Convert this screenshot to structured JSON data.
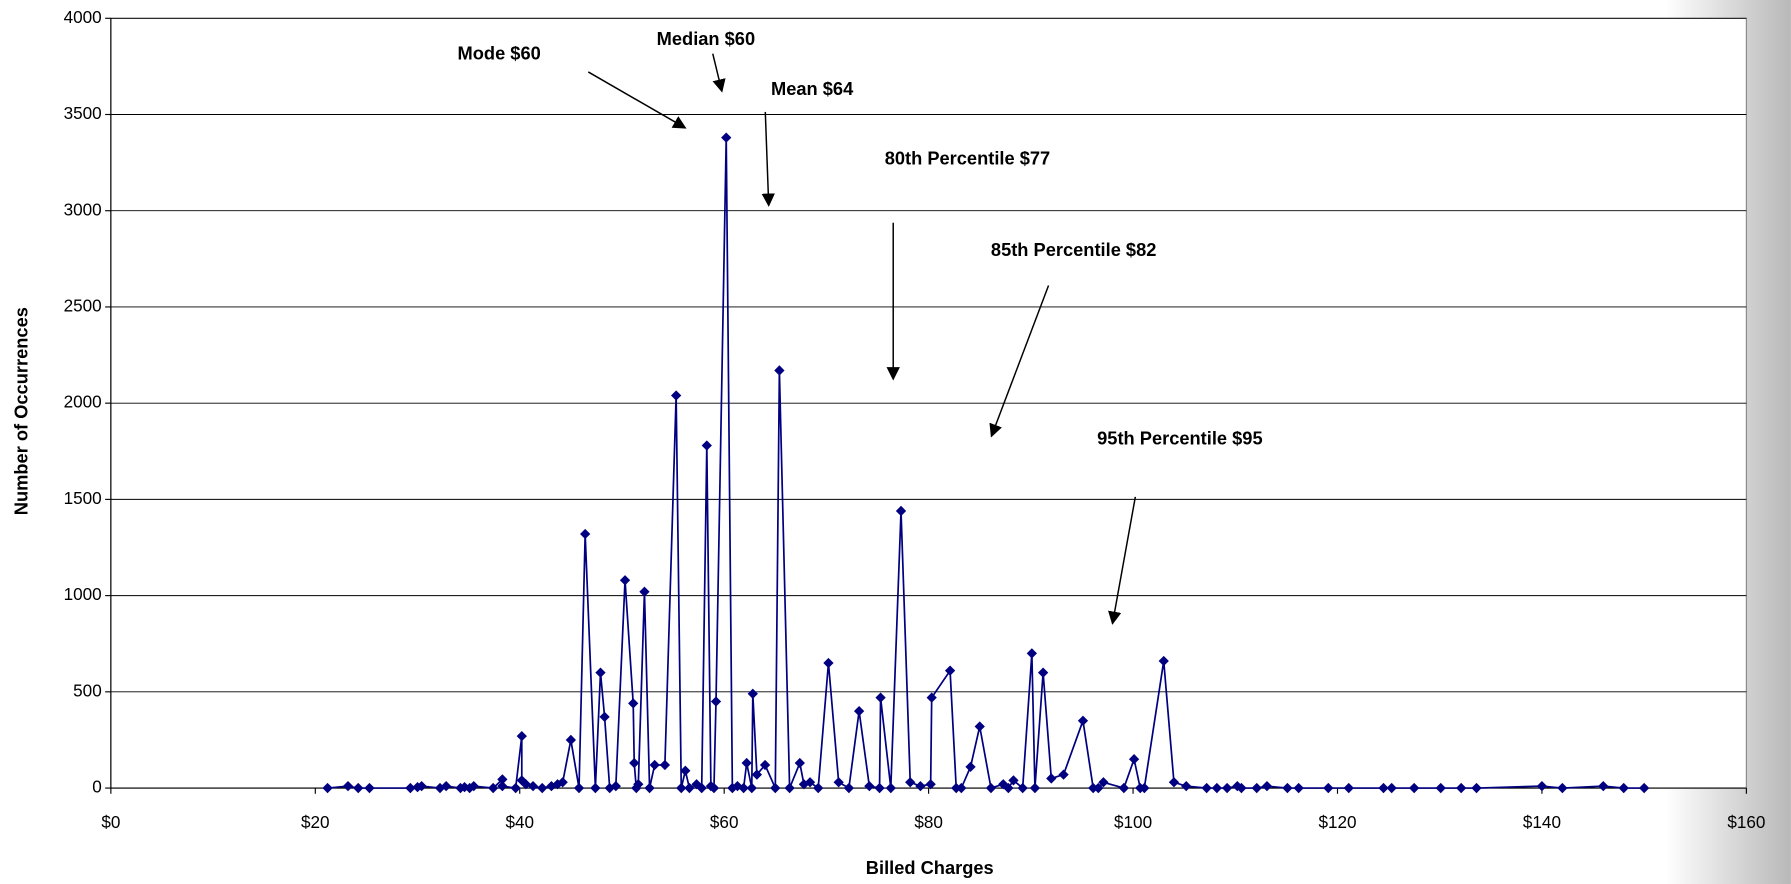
{
  "chart_data": {
    "type": "line",
    "xlabel": "Billed Charges",
    "ylabel": "Number of Occurrences",
    "color": "#000080",
    "marker": "diamond",
    "grid": true,
    "xlim": [
      0,
      160
    ],
    "ylim": [
      0,
      4000
    ],
    "xticks": [
      {
        "value": 0,
        "label": "$0"
      },
      {
        "value": 20,
        "label": "$20"
      },
      {
        "value": 40,
        "label": "$40"
      },
      {
        "value": 60,
        "label": "$60"
      },
      {
        "value": 80,
        "label": "$80"
      },
      {
        "value": 100,
        "label": "$100"
      },
      {
        "value": 120,
        "label": "$120"
      },
      {
        "value": 140,
        "label": "$140"
      },
      {
        "value": 160,
        "label": "$160"
      }
    ],
    "yticks": [
      0,
      500,
      1000,
      1500,
      2000,
      2500,
      3000,
      3500,
      4000
    ],
    "annotations": [
      "Mode $60",
      "Median $60",
      "Mean $64",
      "80th Percentile $77",
      "85th Percentile $82",
      "95th Percentile $95"
    ],
    "x": [
      21.2,
      23.2,
      24.2,
      25.3,
      29.3,
      30,
      30.4,
      32.2,
      32.8,
      34.2,
      34.6,
      35.1,
      35.5,
      37.4,
      38.3,
      38.3,
      39.6,
      40.2,
      40.2,
      40.6,
      41.3,
      42.2,
      43.1,
      43.7,
      44.2,
      45,
      45.8,
      46.4,
      47.4,
      47.9,
      48.3,
      48.8,
      49.4,
      50.3,
      51.1,
      51.2,
      51.4,
      51.6,
      52.2,
      52.7,
      53.2,
      54.2,
      55.3,
      55.8,
      56.2,
      56.6,
      57.3,
      57.8,
      58.3,
      58.7,
      59,
      59.2,
      60.2,
      60.8,
      61.3,
      61.9,
      62.2,
      62.7,
      62.8,
      63.2,
      64,
      65,
      65.4,
      66.4,
      67.4,
      67.8,
      68.4,
      69.2,
      70.2,
      71.2,
      72.2,
      73.2,
      74.2,
      75.2,
      75.3,
      76.3,
      77.3,
      78.2,
      79.2,
      80.2,
      80.3,
      82.1,
      82.7,
      83.2,
      84.1,
      85,
      86.1,
      87.3,
      87.8,
      88.3,
      89.2,
      90.1,
      90.4,
      91.2,
      92,
      93.2,
      95.1,
      96.1,
      96.6,
      97.1,
      99.1,
      100.1,
      100.7,
      101.1,
      103,
      104,
      105.2,
      107.2,
      108.2,
      109.2,
      110.2,
      110.6,
      112.1,
      113.1,
      115.1,
      116.2,
      119.1,
      121.1,
      124.5,
      125.3,
      127.5,
      130.1,
      132.1,
      133.6,
      140,
      142,
      146,
      148,
      150
    ],
    "values": [
      0,
      10,
      0,
      0,
      0,
      5,
      10,
      0,
      10,
      0,
      5,
      0,
      10,
      0,
      45,
      10,
      0,
      270,
      40,
      20,
      10,
      0,
      10,
      20,
      30,
      250,
      0,
      1320,
      0,
      600,
      370,
      0,
      10,
      1080,
      440,
      130,
      0,
      20,
      1020,
      0,
      120,
      120,
      2040,
      0,
      90,
      0,
      20,
      0,
      1780,
      10,
      0,
      450,
      3380,
      0,
      10,
      0,
      130,
      0,
      490,
      70,
      120,
      0,
      2170,
      0,
      130,
      20,
      30,
      0,
      650,
      30,
      0,
      400,
      10,
      0,
      470,
      0,
      1440,
      30,
      10,
      20,
      470,
      610,
      0,
      0,
      110,
      320,
      0,
      20,
      0,
      40,
      0,
      700,
      0,
      600,
      50,
      70,
      350,
      0,
      0,
      30,
      0,
      150,
      0,
      0,
      660,
      30,
      10,
      0,
      0,
      0,
      10,
      0,
      0,
      10,
      0,
      0,
      0,
      0,
      0,
      0,
      0,
      0,
      0,
      0,
      10,
      0,
      10,
      0,
      0
    ]
  }
}
